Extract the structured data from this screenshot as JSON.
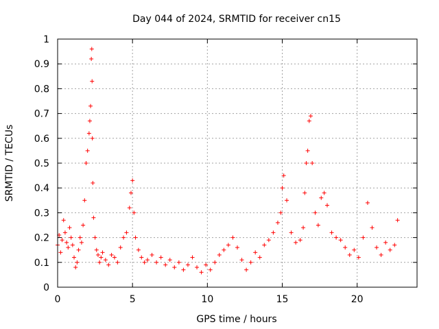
{
  "chart_data": {
    "type": "scatter",
    "title": "Day 044 of 2024, SRMTID for receiver cn15",
    "xlabel": "GPS time / hours",
    "ylabel": "SRMTID / TECUs",
    "xlim": [
      0,
      24
    ],
    "ylim": [
      0,
      1
    ],
    "xticks": [
      0,
      5,
      10,
      15,
      20
    ],
    "yticks": [
      0,
      0.1,
      0.2,
      0.3,
      0.4,
      0.5,
      0.6,
      0.7,
      0.8,
      0.9,
      1
    ],
    "grid": true,
    "marker": "+",
    "color": "#ff0000",
    "series": [
      {
        "name": "SRMTID",
        "x": [
          0.0,
          0.1,
          0.2,
          0.3,
          0.4,
          0.5,
          0.6,
          0.7,
          0.8,
          0.9,
          1.0,
          1.1,
          1.2,
          1.3,
          1.4,
          1.5,
          1.6,
          1.7,
          1.8,
          1.9,
          2.0,
          2.1,
          2.15,
          2.2,
          2.25,
          2.28,
          2.3,
          2.32,
          2.35,
          2.4,
          2.5,
          2.6,
          2.7,
          2.8,
          2.9,
          3.0,
          3.2,
          3.4,
          3.6,
          3.8,
          4.0,
          4.2,
          4.4,
          4.6,
          4.8,
          4.9,
          5.0,
          5.1,
          5.2,
          5.4,
          5.6,
          5.8,
          6.0,
          6.3,
          6.6,
          6.9,
          7.2,
          7.5,
          7.8,
          8.1,
          8.4,
          8.7,
          9.0,
          9.3,
          9.6,
          9.9,
          10.2,
          10.5,
          10.8,
          11.1,
          11.4,
          11.7,
          12.0,
          12.3,
          12.6,
          12.9,
          13.2,
          13.5,
          13.8,
          14.1,
          14.4,
          14.7,
          14.9,
          15.0,
          15.1,
          15.3,
          15.6,
          15.9,
          16.2,
          16.4,
          16.5,
          16.6,
          16.7,
          16.8,
          16.9,
          17.0,
          17.2,
          17.4,
          17.6,
          17.8,
          18.0,
          18.3,
          18.6,
          18.9,
          19.2,
          19.5,
          19.8,
          20.1,
          20.4,
          20.7,
          21.0,
          21.3,
          21.6,
          21.9,
          22.2,
          22.5,
          22.7
        ],
        "y": [
          0.17,
          0.21,
          0.14,
          0.19,
          0.27,
          0.22,
          0.18,
          0.16,
          0.24,
          0.2,
          0.17,
          0.12,
          0.08,
          0.1,
          0.15,
          0.2,
          0.18,
          0.25,
          0.35,
          0.5,
          0.55,
          0.62,
          0.67,
          0.73,
          0.92,
          0.96,
          0.83,
          0.6,
          0.42,
          0.28,
          0.2,
          0.15,
          0.13,
          0.1,
          0.12,
          0.14,
          0.11,
          0.09,
          0.13,
          0.12,
          0.1,
          0.16,
          0.2,
          0.22,
          0.32,
          0.38,
          0.43,
          0.3,
          0.2,
          0.15,
          0.12,
          0.1,
          0.11,
          0.13,
          0.1,
          0.12,
          0.09,
          0.11,
          0.08,
          0.1,
          0.07,
          0.09,
          0.12,
          0.08,
          0.06,
          0.09,
          0.07,
          0.1,
          0.13,
          0.15,
          0.17,
          0.2,
          0.16,
          0.11,
          0.07,
          0.1,
          0.14,
          0.12,
          0.17,
          0.19,
          0.22,
          0.26,
          0.3,
          0.4,
          0.45,
          0.35,
          0.22,
          0.18,
          0.19,
          0.24,
          0.38,
          0.5,
          0.55,
          0.67,
          0.69,
          0.5,
          0.3,
          0.25,
          0.36,
          0.38,
          0.33,
          0.22,
          0.2,
          0.19,
          0.16,
          0.13,
          0.15,
          0.12,
          0.2,
          0.34,
          0.24,
          0.16,
          0.13,
          0.18,
          0.15,
          0.17,
          0.27
        ]
      }
    ]
  }
}
